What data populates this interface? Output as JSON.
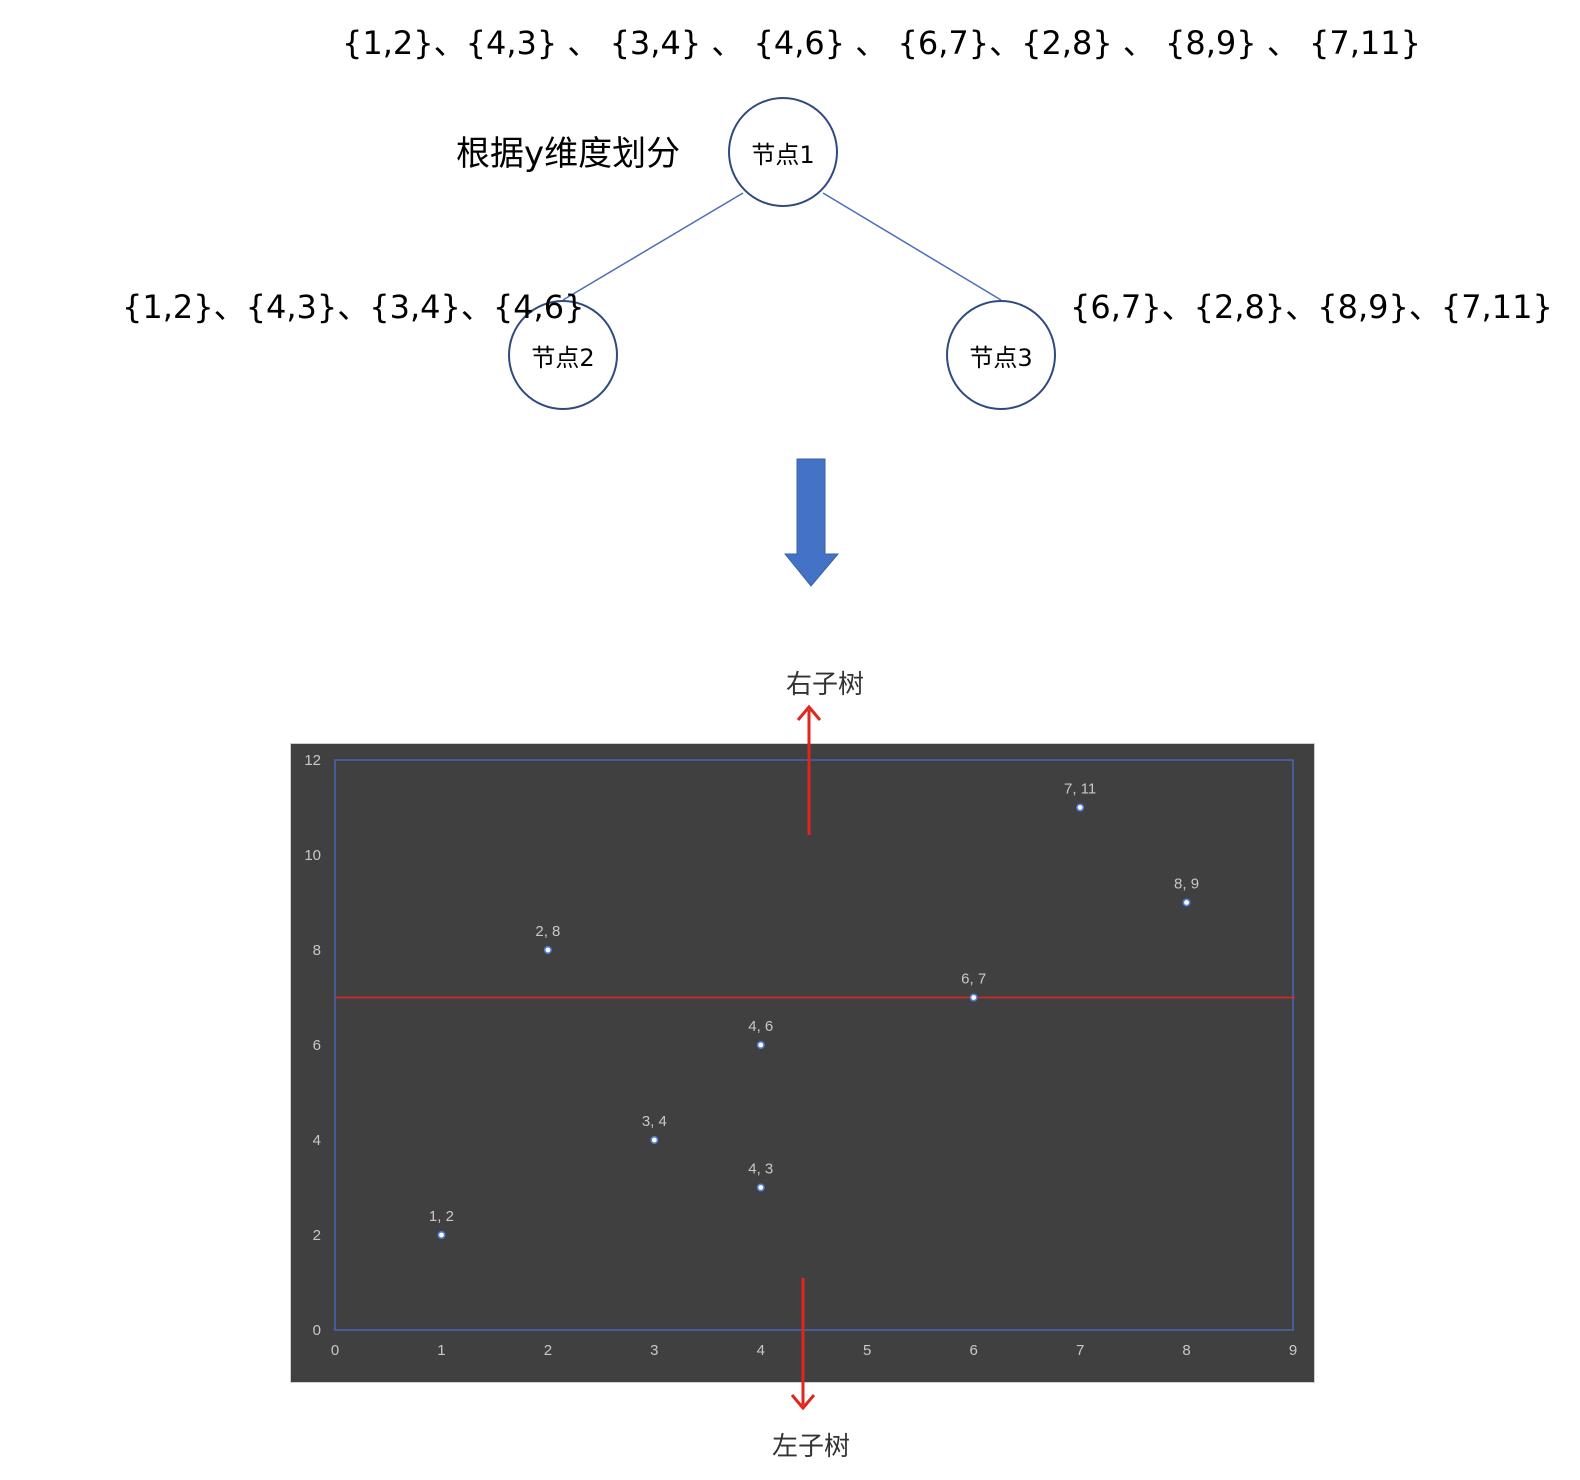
{
  "header": {
    "all_points_text": "{1,2}、{4,3} 、 {3,4} 、 {4,6} 、 {6,7}、{2,8} 、 {8,9} 、 {7,11}"
  },
  "tree": {
    "split_label": "根据y维度划分",
    "root": {
      "label": "节点1"
    },
    "left": {
      "label": "节点2",
      "points_text": "{1,2}、{4,3}、{3,4}、{4,6}"
    },
    "right": {
      "label": "节点3",
      "points_text": "{6,7}、{2,8}、{8,9}、{7,11}"
    }
  },
  "labels": {
    "right_subtree": "右子树",
    "left_subtree": "左子树"
  },
  "colors": {
    "node_border": "#2f4a7e",
    "tree_line": "#4a6fb5",
    "big_arrow": "#4472c4",
    "chart_bg": "#404040",
    "point": "#4f7fd8",
    "split_line": "#e0261e",
    "subtree_arrow": "#e0261e"
  },
  "chart_data": {
    "type": "scatter",
    "xlim": [
      0,
      9
    ],
    "ylim": [
      0,
      12
    ],
    "xticks": [
      0,
      1,
      2,
      3,
      4,
      5,
      6,
      7,
      8,
      9
    ],
    "yticks": [
      0,
      2,
      4,
      6,
      8,
      10,
      12
    ],
    "grid": false,
    "points": [
      {
        "x": 1,
        "y": 2,
        "label": "1, 2"
      },
      {
        "x": 4,
        "y": 3,
        "label": "4, 3"
      },
      {
        "x": 3,
        "y": 4,
        "label": "3, 4"
      },
      {
        "x": 4,
        "y": 6,
        "label": "4, 6"
      },
      {
        "x": 6,
        "y": 7,
        "label": "6, 7"
      },
      {
        "x": 2,
        "y": 8,
        "label": "2, 8"
      },
      {
        "x": 8,
        "y": 9,
        "label": "8, 9"
      },
      {
        "x": 7,
        "y": 11,
        "label": "7, 11"
      }
    ],
    "split_line_y": 7
  }
}
